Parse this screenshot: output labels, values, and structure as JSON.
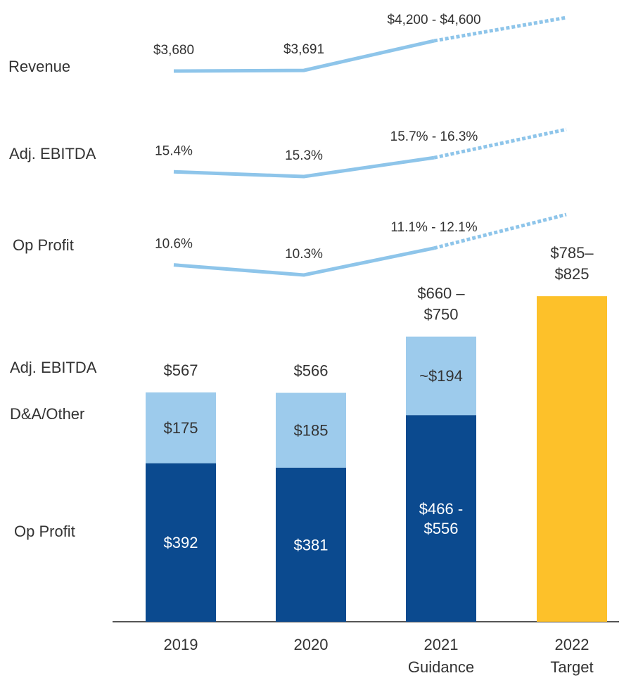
{
  "chart_data": {
    "type": "bar",
    "categories": [
      "2019",
      "2020",
      "2021",
      "2022"
    ],
    "category_notes": [
      null,
      null,
      "Guidance",
      "Target"
    ],
    "series": [
      {
        "name": "Op Profit",
        "color": "#0b4a8f",
        "values": [
          392,
          381,
          466,
          null
        ],
        "values_high": [
          null,
          null,
          556,
          null
        ],
        "value_labels": [
          [
            "$392"
          ],
          [
            "$381"
          ],
          [
            "$466 -",
            "$556"
          ],
          null
        ]
      },
      {
        "name": "D&A/Other",
        "color": "#9dcbec",
        "values": [
          175,
          185,
          194,
          null
        ],
        "value_labels": [
          [
            "$175"
          ],
          [
            "$185"
          ],
          [
            "~$194"
          ],
          null
        ]
      }
    ],
    "totals": {
      "name": "Adj. EBITDA",
      "values": [
        567,
        566,
        660,
        785
      ],
      "values_high": [
        null,
        null,
        750,
        825
      ],
      "value_labels": [
        [
          "$567"
        ],
        [
          "$566"
        ],
        [
          "$660 –",
          "$750"
        ],
        [
          "$785–",
          "$825"
        ]
      ]
    },
    "target_color": "#fdc12a",
    "lines": [
      {
        "type": "line",
        "name": "Revenue",
        "color": "#8ec5ea",
        "values": [
          3680,
          3691,
          4200,
          null
        ],
        "values_high": [
          null,
          null,
          4600,
          null
        ],
        "value_labels": [
          "$3,680",
          "$3,691",
          "$4,200 - $4,600",
          null
        ]
      },
      {
        "type": "line",
        "name": "Adj. EBITDA",
        "color": "#8ec5ea",
        "values": [
          15.4,
          15.3,
          15.7,
          null
        ],
        "values_high": [
          null,
          null,
          16.3,
          null
        ],
        "value_labels": [
          "15.4%",
          "15.3%",
          "15.7% - 16.3%",
          null
        ]
      },
      {
        "type": "line",
        "name": "Op Profit",
        "color": "#8ec5ea",
        "values": [
          10.6,
          10.3,
          11.1,
          null
        ],
        "values_high": [
          null,
          null,
          12.1,
          null
        ],
        "value_labels": [
          "10.6%",
          "10.3%",
          "11.1% - 12.1%",
          null
        ]
      }
    ]
  }
}
